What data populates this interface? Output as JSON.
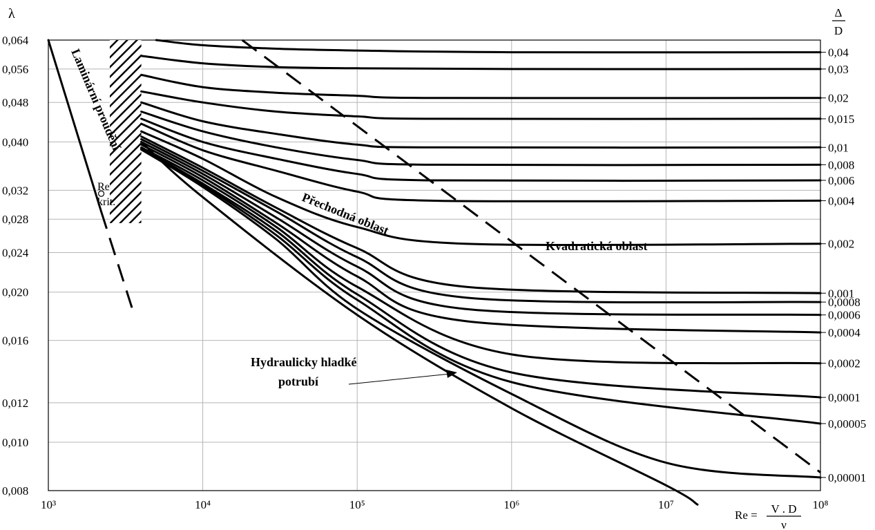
{
  "chart_data": {
    "type": "line",
    "xscale": "log",
    "yscale": "log",
    "xlim": [
      1000,
      100000000
    ],
    "ylim": [
      0.008,
      0.064
    ],
    "xticks": [
      "10³",
      "10⁴",
      "10⁵",
      "10⁶",
      "10⁷",
      "10⁸"
    ],
    "yticks": [
      "0,008",
      "0,010",
      "0,012",
      "0,016",
      "0,020",
      "0,024",
      "0,028",
      "0,032",
      "0,040",
      "0,048",
      "0,056",
      "0,064"
    ],
    "ylabel": "λ",
    "xlabel": {
      "prefix": "Re =",
      "numerator": "V . D",
      "denominator": "ν"
    },
    "right_label": {
      "numerator": "Δ",
      "denominator": "D"
    },
    "grid": true,
    "laminar": {
      "re": [
        1000,
        2200
      ],
      "lambda": [
        0.064,
        0.029
      ]
    },
    "laminar_extension": {
      "re": [
        2200,
        3600
      ],
      "lambda": [
        0.029,
        0.018
      ]
    },
    "critical_point": {
      "re": 2200,
      "lambda": 0.0315
    },
    "transition_zone": {
      "re": [
        2500,
        4000
      ],
      "lambda": [
        0.0275,
        0.064
      ]
    },
    "quadratic_boundary": {
      "re": [
        18000,
        100000000
      ],
      "lambda": [
        0.064,
        0.0087
      ]
    },
    "smooth_pipe": {
      "re": [
        4000,
        10000,
        100000,
        1000000,
        10000000,
        16000000
      ],
      "lambda": [
        0.04,
        0.031,
        0.018,
        0.0117,
        0.0082,
        0.0075
      ]
    },
    "series": [
      {
        "name": "0,04",
        "re": [
          5000,
          10000,
          30000,
          100000,
          1000000,
          100000000
        ],
        "lambda": [
          0.064,
          0.0625,
          0.0615,
          0.061,
          0.0605,
          0.0605
        ]
      },
      {
        "name": "0,03",
        "re": [
          4000,
          10000,
          30000,
          100000,
          1000000,
          100000000
        ],
        "lambda": [
          0.0595,
          0.0575,
          0.0565,
          0.0562,
          0.056,
          0.056
        ]
      },
      {
        "name": "0,02",
        "re": [
          4000,
          10000,
          30000,
          100000,
          300000,
          100000000
        ],
        "lambda": [
          0.0545,
          0.0515,
          0.0502,
          0.0495,
          0.049,
          0.049
        ]
      },
      {
        "name": "0,015",
        "re": [
          4000,
          10000,
          30000,
          100000,
          300000,
          100000000
        ],
        "lambda": [
          0.0505,
          0.048,
          0.046,
          0.045,
          0.0445,
          0.0445
        ]
      },
      {
        "name": "0,01",
        "re": [
          4000,
          10000,
          30000,
          100000,
          300000,
          100000000
        ],
        "lambda": [
          0.048,
          0.044,
          0.0415,
          0.0395,
          0.039,
          0.039
        ]
      },
      {
        "name": "0,008",
        "re": [
          4000,
          10000,
          30000,
          100000,
          300000,
          100000000
        ],
        "lambda": [
          0.046,
          0.042,
          0.039,
          0.0368,
          0.036,
          0.036
        ]
      },
      {
        "name": "0,006",
        "re": [
          4000,
          10000,
          30000,
          100000,
          300000,
          100000000
        ],
        "lambda": [
          0.0445,
          0.04,
          0.037,
          0.0345,
          0.0335,
          0.0335
        ]
      },
      {
        "name": "0,004",
        "re": [
          4000,
          10000,
          30000,
          100000,
          300000,
          100000000
        ],
        "lambda": [
          0.0435,
          0.0385,
          0.035,
          0.0318,
          0.0305,
          0.0305
        ]
      },
      {
        "name": "0,002",
        "re": [
          4000,
          10000,
          30000,
          100000,
          500000,
          100000000
        ],
        "lambda": [
          0.042,
          0.037,
          0.031,
          0.027,
          0.025,
          0.025
        ]
      },
      {
        "name": "0,001",
        "re": [
          4000,
          10000,
          30000,
          100000,
          500000,
          100000000
        ],
        "lambda": [
          0.041,
          0.0355,
          0.0295,
          0.0245,
          0.0205,
          0.0199
        ]
      },
      {
        "name": "0,0008",
        "re": [
          4000,
          10000,
          30000,
          100000,
          500000,
          100000000
        ],
        "lambda": [
          0.0405,
          0.035,
          0.029,
          0.0235,
          0.0195,
          0.0191
        ]
      },
      {
        "name": "0,0006",
        "re": [
          4000,
          10000,
          30000,
          100000,
          500000,
          100000000
        ],
        "lambda": [
          0.04,
          0.0345,
          0.0282,
          0.0225,
          0.0185,
          0.018
        ]
      },
      {
        "name": "0,0004",
        "re": [
          4000,
          10000,
          30000,
          100000,
          500000,
          100000000
        ],
        "lambda": [
          0.0395,
          0.034,
          0.0275,
          0.0215,
          0.0175,
          0.0166
        ]
      },
      {
        "name": "0,0002",
        "re": [
          4000,
          10000,
          30000,
          100000,
          1000000,
          100000000
        ],
        "lambda": [
          0.039,
          0.0335,
          0.027,
          0.0205,
          0.015,
          0.0144
        ]
      },
      {
        "name": "0,0001",
        "re": [
          4000,
          10000,
          30000,
          100000,
          1000000,
          100000000
        ],
        "lambda": [
          0.0388,
          0.033,
          0.0265,
          0.0198,
          0.0138,
          0.0123
        ]
      },
      {
        "name": "0,00005",
        "re": [
          4000,
          10000,
          30000,
          100000,
          1000000,
          100000000
        ],
        "lambda": [
          0.0387,
          0.0328,
          0.026,
          0.0193,
          0.0132,
          0.0109
        ]
      },
      {
        "name": "0,00001",
        "re": [
          4000,
          10000,
          30000,
          100000,
          1000000,
          10000000,
          100000000
        ],
        "lambda": [
          0.0386,
          0.0325,
          0.0255,
          0.0185,
          0.0125,
          0.0091,
          0.0085
        ]
      }
    ],
    "annotations": {
      "laminar": "Laminární proudění",
      "re_crit": [
        "Re",
        "krit."
      ],
      "transition": "Přechodná oblast",
      "quadratic": "Kvadratická oblast",
      "smooth": [
        "Hydraulicky hladké",
        "potrubí"
      ]
    }
  }
}
